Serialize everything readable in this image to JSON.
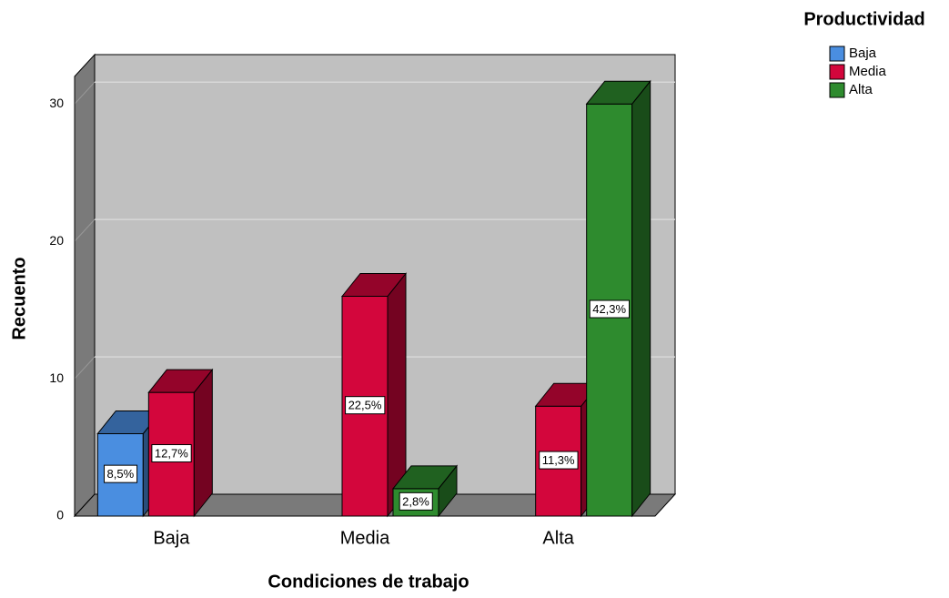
{
  "chart_data": {
    "type": "bar3d",
    "x_label": "Condiciones de trabajo",
    "y_label": "Recuento",
    "legend_title": "Productividad",
    "categories": [
      "Baja",
      "Media",
      "Alta"
    ],
    "series": [
      {
        "name": "Baja",
        "color": "#4a8ee0",
        "values": [
          6,
          null,
          null
        ],
        "percent_labels": [
          "8,5%",
          null,
          null
        ]
      },
      {
        "name": "Media",
        "color": "#d3063c",
        "values": [
          9,
          16,
          8
        ],
        "percent_labels": [
          "12,7%",
          "22,5%",
          "11,3%"
        ]
      },
      {
        "name": "Alta",
        "color": "#2e8b2e",
        "values": [
          null,
          2,
          30
        ],
        "percent_labels": [
          null,
          "2,8%",
          "42,3%"
        ]
      }
    ],
    "ylim": [
      0,
      32
    ],
    "yticks": [
      0,
      10,
      20,
      30
    ],
    "grid": true,
    "legend": "top-right"
  }
}
